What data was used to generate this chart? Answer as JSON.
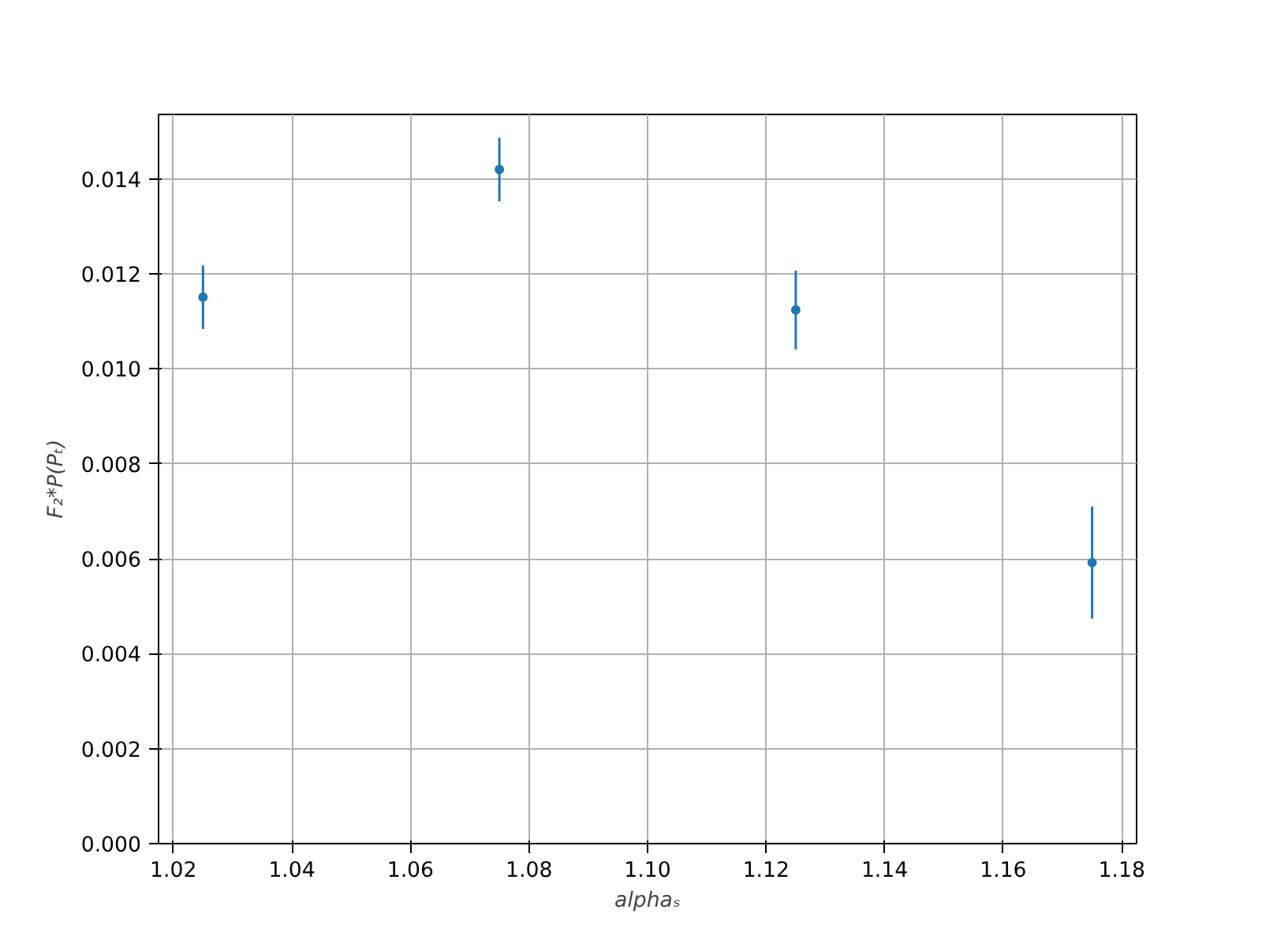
{
  "chart_data": {
    "type": "scatter",
    "xlabel": "alphaₛ",
    "ylabel": "F₂*P(Pₜ)",
    "x": [
      1.025,
      1.075,
      1.125,
      1.175
    ],
    "series": [
      {
        "color": "#1f77b4",
        "values": [
          0.01151,
          0.0142,
          0.01124,
          0.00592
        ],
        "errors": [
          0.00067,
          0.00067,
          0.00083,
          0.00118
        ]
      }
    ],
    "xlim": [
      1.0175,
      1.1825
    ],
    "xticks": [
      1.02,
      1.04,
      1.06,
      1.08,
      {
        "value": 1.1,
        "label": "1.10"
      },
      1.12,
      1.14,
      1.16,
      1.18
    ],
    "ylim": [
      0,
      0.01536
    ],
    "yticks": [
      {
        "value": 0,
        "label": "0.000"
      },
      0.002,
      0.004,
      0.006,
      0.008,
      {
        "value": 0.01,
        "label": "0.010"
      },
      0.012,
      0.014
    ],
    "grid": true,
    "marker": "circle"
  }
}
